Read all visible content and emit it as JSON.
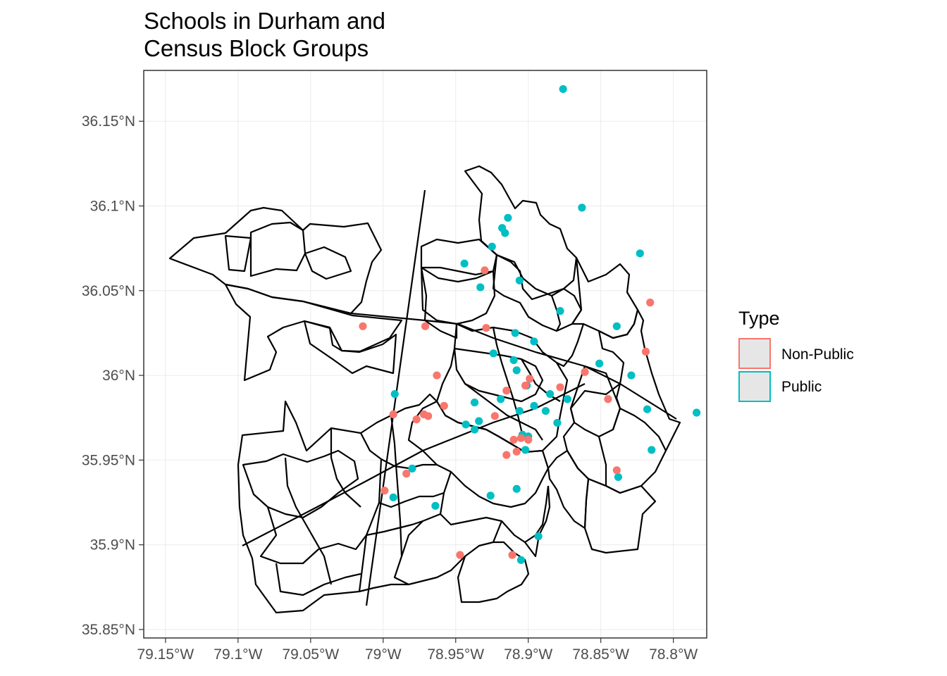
{
  "title_line1": "Schools in Durham and",
  "title_line2": "Census Block Groups",
  "legend": {
    "title": "Type",
    "items": [
      {
        "label": "Non-Public",
        "color": "#F8766D"
      },
      {
        "label": "Public",
        "color": "#00BFC4"
      }
    ]
  },
  "chart_data": {
    "type": "map-scatter",
    "xlim": [
      -79.165,
      -78.777
    ],
    "ylim": [
      35.845,
      36.18
    ],
    "x_ticks": [
      {
        "value": -79.15,
        "label": "79.15°W"
      },
      {
        "value": -79.1,
        "label": "79.1°W"
      },
      {
        "value": -79.05,
        "label": "79.05°W"
      },
      {
        "value": -79.0,
        "label": "79°W"
      },
      {
        "value": -78.95,
        "label": "78.95°W"
      },
      {
        "value": -78.9,
        "label": "78.9°W"
      },
      {
        "value": -78.85,
        "label": "78.85°W"
      },
      {
        "value": -78.8,
        "label": "78.8°W"
      }
    ],
    "y_ticks": [
      {
        "value": 35.85,
        "label": "35.85°N"
      },
      {
        "value": 35.9,
        "label": "35.9°N"
      },
      {
        "value": 35.95,
        "label": "35.95°N"
      },
      {
        "value": 36.0,
        "label": "36°N"
      },
      {
        "value": 36.05,
        "label": "36.05°N"
      },
      {
        "value": 36.1,
        "label": "36.1°N"
      },
      {
        "value": 36.15,
        "label": "36.15°N"
      }
    ],
    "grid": true,
    "legend_position": "right",
    "series": [
      {
        "name": "Public",
        "points": [
          [
            -78.876,
            36.169
          ],
          [
            -78.863,
            36.099
          ],
          [
            -78.823,
            36.072
          ],
          [
            -78.918,
            36.087
          ],
          [
            -78.914,
            36.093
          ],
          [
            -78.916,
            36.084
          ],
          [
            -78.925,
            36.076
          ],
          [
            -78.944,
            36.066
          ],
          [
            -78.933,
            36.052
          ],
          [
            -78.906,
            36.056
          ],
          [
            -78.878,
            36.038
          ],
          [
            -78.839,
            36.029
          ],
          [
            -78.909,
            36.025
          ],
          [
            -78.896,
            36.02
          ],
          [
            -78.924,
            36.013
          ],
          [
            -78.91,
            36.009
          ],
          [
            -78.851,
            36.007
          ],
          [
            -78.908,
            36.003
          ],
          [
            -78.829,
            36.0
          ],
          [
            -78.992,
            35.989
          ],
          [
            -78.901,
            35.994
          ],
          [
            -78.885,
            35.989
          ],
          [
            -78.873,
            35.986
          ],
          [
            -78.937,
            35.984
          ],
          [
            -78.919,
            35.986
          ],
          [
            -78.896,
            35.982
          ],
          [
            -78.888,
            35.979
          ],
          [
            -78.906,
            35.979
          ],
          [
            -78.818,
            35.98
          ],
          [
            -78.784,
            35.978
          ],
          [
            -78.934,
            35.973
          ],
          [
            -78.88,
            35.972
          ],
          [
            -78.943,
            35.971
          ],
          [
            -78.937,
            35.968
          ],
          [
            -78.904,
            35.965
          ],
          [
            -78.9,
            35.964
          ],
          [
            -78.902,
            35.956
          ],
          [
            -78.815,
            35.956
          ],
          [
            -78.98,
            35.945
          ],
          [
            -78.838,
            35.94
          ],
          [
            -78.908,
            35.933
          ],
          [
            -78.926,
            35.929
          ],
          [
            -78.993,
            35.928
          ],
          [
            -78.964,
            35.923
          ],
          [
            -78.893,
            35.905
          ],
          [
            -78.905,
            35.891
          ]
        ]
      },
      {
        "name": "Non-Public",
        "points": [
          [
            -78.93,
            36.062
          ],
          [
            -78.816,
            36.043
          ],
          [
            -79.014,
            36.029
          ],
          [
            -78.971,
            36.029
          ],
          [
            -78.929,
            36.028
          ],
          [
            -78.819,
            36.014
          ],
          [
            -78.861,
            36.002
          ],
          [
            -78.963,
            36.0
          ],
          [
            -78.899,
            35.998
          ],
          [
            -78.878,
            35.993
          ],
          [
            -78.902,
            35.994
          ],
          [
            -78.915,
            35.991
          ],
          [
            -78.845,
            35.986
          ],
          [
            -78.958,
            35.982
          ],
          [
            -78.993,
            35.977
          ],
          [
            -78.969,
            35.976
          ],
          [
            -78.972,
            35.977
          ],
          [
            -78.977,
            35.974
          ],
          [
            -78.923,
            35.976
          ],
          [
            -78.905,
            35.963
          ],
          [
            -78.91,
            35.962
          ],
          [
            -78.9,
            35.962
          ],
          [
            -78.915,
            35.953
          ],
          [
            -78.908,
            35.955
          ],
          [
            -78.984,
            35.942
          ],
          [
            -78.839,
            35.944
          ],
          [
            -78.999,
            35.932
          ],
          [
            -78.947,
            35.894
          ],
          [
            -78.911,
            35.894
          ]
        ]
      }
    ]
  }
}
